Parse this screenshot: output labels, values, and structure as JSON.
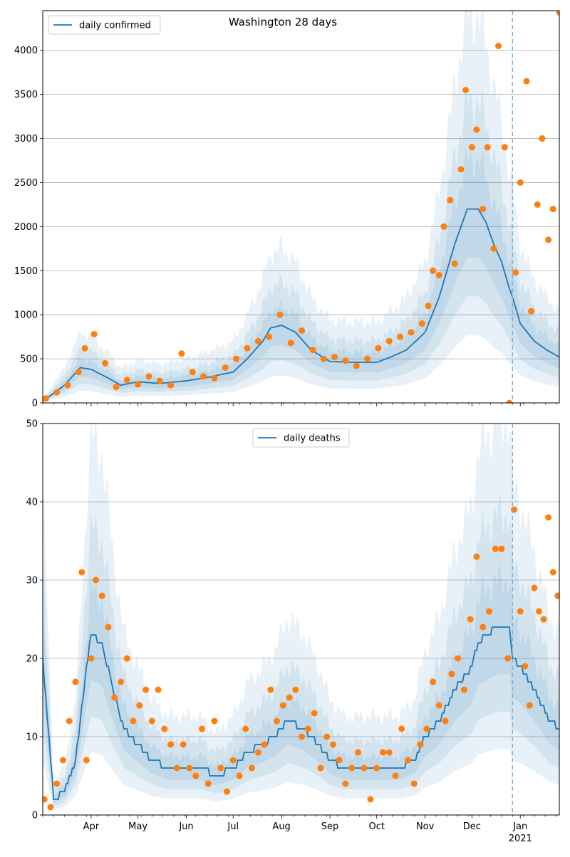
{
  "figure": {
    "title": "Washington 28 days"
  },
  "chart_data": [
    {
      "type": "line",
      "title": "Washington 28 days",
      "legend": {
        "label": "daily confirmed",
        "placement": "top-left"
      },
      "x_axis": {
        "start": "2020-03-01",
        "end": "2021-01-26",
        "tick_labels": [
          "Apr",
          "May",
          "Jun",
          "Jul",
          "Aug",
          "Sep",
          "Oct",
          "Nov",
          "Dec",
          "Jan"
        ],
        "tick_dates": [
          "2020-04-01",
          "2020-05-01",
          "2020-06-01",
          "2020-07-01",
          "2020-08-01",
          "2020-09-01",
          "2020-10-01",
          "2020-11-01",
          "2020-12-01",
          "2021-01-01"
        ],
        "year_label": "2021"
      },
      "y_axis": {
        "range": [
          0,
          4450
        ],
        "ticks": [
          0,
          500,
          1000,
          1500,
          2000,
          2500,
          3000,
          3500,
          4000
        ]
      },
      "grid": "horizontal",
      "forecast_start": "2020-12-27",
      "colors": {
        "line": "#1f77b4",
        "points": "#ff7f0e",
        "band": "#1f77b4",
        "forecast_line": "#7eb0d5"
      },
      "series": [
        {
          "name": "daily confirmed",
          "date": [
            "2020-03-01",
            "2020-03-15",
            "2020-03-25",
            "2020-04-01",
            "2020-04-10",
            "2020-04-20",
            "2020-05-01",
            "2020-05-15",
            "2020-06-01",
            "2020-06-15",
            "2020-07-01",
            "2020-07-10",
            "2020-07-20",
            "2020-07-25",
            "2020-08-01",
            "2020-08-10",
            "2020-08-20",
            "2020-09-01",
            "2020-09-15",
            "2020-10-01",
            "2020-10-10",
            "2020-10-20",
            "2020-11-01",
            "2020-11-10",
            "2020-11-20",
            "2020-11-28",
            "2020-12-05",
            "2020-12-10",
            "2020-12-15",
            "2020-12-20",
            "2020-12-25",
            "2020-12-27",
            "2021-01-01",
            "2021-01-10",
            "2021-01-18",
            "2021-01-26"
          ],
          "value": [
            20,
            200,
            400,
            380,
            300,
            200,
            240,
            220,
            250,
            290,
            350,
            500,
            700,
            850,
            880,
            800,
            600,
            470,
            460,
            460,
            520,
            600,
            800,
            1200,
            1800,
            2200,
            2200,
            2050,
            1800,
            1600,
            1300,
            1200,
            900,
            700,
            600,
            520
          ]
        }
      ],
      "observed_points": {
        "name": "",
        "date": [
          "2020-03-03",
          "2020-03-10",
          "2020-03-17",
          "2020-03-24",
          "2020-03-28",
          "2020-04-03",
          "2020-04-10",
          "2020-04-17",
          "2020-04-24",
          "2020-05-01",
          "2020-05-08",
          "2020-05-15",
          "2020-05-22",
          "2020-05-29",
          "2020-06-05",
          "2020-06-12",
          "2020-06-19",
          "2020-06-26",
          "2020-07-03",
          "2020-07-10",
          "2020-07-17",
          "2020-07-24",
          "2020-07-31",
          "2020-08-07",
          "2020-08-14",
          "2020-08-21",
          "2020-08-28",
          "2020-09-04",
          "2020-09-11",
          "2020-09-18",
          "2020-09-25",
          "2020-10-02",
          "2020-10-09",
          "2020-10-16",
          "2020-10-23",
          "2020-10-30",
          "2020-11-03",
          "2020-11-06",
          "2020-11-10",
          "2020-11-13",
          "2020-11-17",
          "2020-11-20",
          "2020-11-24",
          "2020-11-27",
          "2020-12-01",
          "2020-12-04",
          "2020-12-08",
          "2020-12-11",
          "2020-12-15",
          "2020-12-18",
          "2020-12-22",
          "2020-12-25",
          "2020-12-29",
          "2021-01-01",
          "2021-01-05",
          "2021-01-08",
          "2021-01-12",
          "2021-01-15",
          "2021-01-19",
          "2021-01-22",
          "2021-01-26"
        ],
        "value": [
          50,
          120,
          200,
          350,
          620,
          780,
          450,
          180,
          260,
          210,
          300,
          250,
          200,
          560,
          350,
          300,
          280,
          400,
          500,
          620,
          700,
          750,
          1000,
          680,
          820,
          600,
          500,
          520,
          480,
          420,
          500,
          620,
          700,
          750,
          800,
          900,
          1100,
          1500,
          1450,
          2000,
          2300,
          1580,
          2650,
          3550,
          2900,
          3100,
          2200,
          2900,
          1750,
          4050,
          2900,
          0,
          1480,
          2500,
          3650,
          1040,
          2250,
          3000,
          1850,
          2200,
          4430
        ]
      }
    },
    {
      "type": "line",
      "legend": {
        "label": "daily deaths",
        "placement": "top-center"
      },
      "x_axis": {
        "start": "2020-03-01",
        "end": "2021-01-26",
        "tick_labels": [
          "Apr",
          "May",
          "Jun",
          "Jul",
          "Aug",
          "Sep",
          "Oct",
          "Nov",
          "Dec",
          "Jan"
        ],
        "tick_dates": [
          "2020-04-01",
          "2020-05-01",
          "2020-06-01",
          "2020-07-01",
          "2020-08-01",
          "2020-09-01",
          "2020-10-01",
          "2020-11-01",
          "2020-12-01",
          "2021-01-01"
        ],
        "year_label": "2021"
      },
      "y_axis": {
        "range": [
          0,
          50
        ],
        "ticks": [
          0,
          10,
          20,
          30,
          40,
          50
        ]
      },
      "grid": "horizontal",
      "forecast_start": "2020-12-27",
      "colors": {
        "line": "#1f77b4",
        "points": "#ff7f0e",
        "band": "#1f77b4",
        "forecast_line": "#7eb0d5"
      },
      "series": [
        {
          "name": "daily deaths",
          "date": [
            "2020-03-01",
            "2020-03-08",
            "2020-03-15",
            "2020-03-22",
            "2020-03-28",
            "2020-04-01",
            "2020-04-08",
            "2020-04-15",
            "2020-04-22",
            "2020-05-01",
            "2020-05-10",
            "2020-05-20",
            "2020-06-01",
            "2020-06-10",
            "2020-06-20",
            "2020-07-01",
            "2020-07-10",
            "2020-07-20",
            "2020-07-28",
            "2020-08-05",
            "2020-08-15",
            "2020-08-25",
            "2020-09-01",
            "2020-09-10",
            "2020-09-20",
            "2020-10-01",
            "2020-10-15",
            "2020-10-25",
            "2020-11-01",
            "2020-11-10",
            "2020-11-20",
            "2020-12-01",
            "2020-12-05",
            "2020-12-10",
            "2020-12-18",
            "2020-12-25",
            "2020-12-27",
            "2021-01-01",
            "2021-01-10",
            "2021-01-20",
            "2021-01-26"
          ],
          "value": [
            20,
            2,
            3,
            7,
            17,
            23,
            22,
            16,
            11,
            9,
            7,
            6,
            6,
            6,
            5,
            6,
            8,
            9,
            10,
            12,
            11,
            9,
            7,
            6,
            6,
            6,
            6,
            7,
            10,
            12,
            16,
            19,
            22,
            23,
            24,
            24,
            20,
            19,
            16,
            12,
            11
          ]
        }
      ],
      "observed_points": {
        "name": "",
        "date": [
          "2020-03-02",
          "2020-03-06",
          "2020-03-10",
          "2020-03-14",
          "2020-03-18",
          "2020-03-22",
          "2020-03-26",
          "2020-03-29",
          "2020-04-01",
          "2020-04-04",
          "2020-04-08",
          "2020-04-12",
          "2020-04-16",
          "2020-04-20",
          "2020-04-24",
          "2020-04-28",
          "2020-05-02",
          "2020-05-06",
          "2020-05-10",
          "2020-05-14",
          "2020-05-18",
          "2020-05-22",
          "2020-05-26",
          "2020-05-30",
          "2020-06-03",
          "2020-06-07",
          "2020-06-11",
          "2020-06-15",
          "2020-06-19",
          "2020-06-23",
          "2020-06-27",
          "2020-07-01",
          "2020-07-05",
          "2020-07-09",
          "2020-07-13",
          "2020-07-17",
          "2020-07-21",
          "2020-07-25",
          "2020-07-29",
          "2020-08-02",
          "2020-08-06",
          "2020-08-10",
          "2020-08-14",
          "2020-08-18",
          "2020-08-22",
          "2020-08-26",
          "2020-08-30",
          "2020-09-03",
          "2020-09-07",
          "2020-09-11",
          "2020-09-15",
          "2020-09-19",
          "2020-09-23",
          "2020-09-27",
          "2020-10-01",
          "2020-10-05",
          "2020-10-09",
          "2020-10-13",
          "2020-10-17",
          "2020-10-21",
          "2020-10-25",
          "2020-10-29",
          "2020-11-02",
          "2020-11-06",
          "2020-11-10",
          "2020-11-14",
          "2020-11-18",
          "2020-11-22",
          "2020-11-26",
          "2020-11-30",
          "2020-12-04",
          "2020-12-08",
          "2020-12-12",
          "2020-12-16",
          "2020-12-20",
          "2020-12-24",
          "2020-12-28",
          "2021-01-01",
          "2021-01-04",
          "2021-01-07",
          "2021-01-10",
          "2021-01-13",
          "2021-01-16",
          "2021-01-19",
          "2021-01-22",
          "2021-01-25"
        ],
        "value": [
          2,
          1,
          4,
          7,
          12,
          17,
          31,
          7,
          20,
          30,
          28,
          24,
          15,
          17,
          20,
          12,
          14,
          16,
          12,
          16,
          11,
          9,
          6,
          9,
          6,
          5,
          11,
          4,
          12,
          6,
          3,
          7,
          5,
          11,
          6,
          8,
          9,
          16,
          12,
          14,
          15,
          16,
          10,
          11,
          13,
          6,
          10,
          9,
          7,
          4,
          6,
          8,
          6,
          2,
          6,
          8,
          8,
          5,
          11,
          7,
          4,
          9,
          11,
          17,
          14,
          12,
          18,
          20,
          16,
          25,
          33,
          24,
          26,
          34,
          34,
          20,
          39,
          26,
          19,
          14,
          29,
          26,
          25,
          38,
          31,
          28
        ]
      }
    }
  ]
}
